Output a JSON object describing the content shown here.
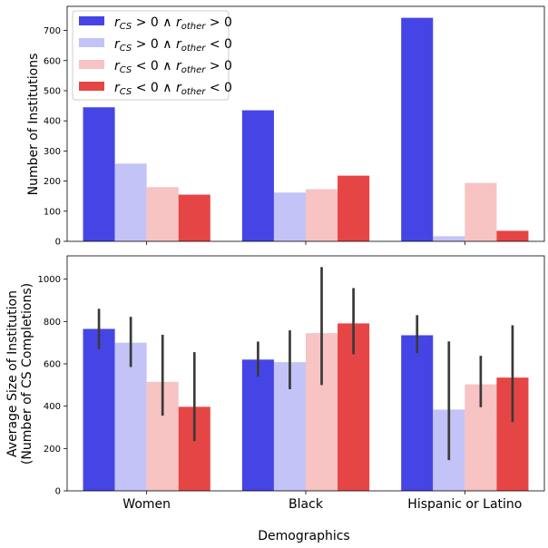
{
  "chart_data": [
    {
      "type": "bar",
      "categories": [
        "Women",
        "Black",
        "Hispanic or Latino"
      ],
      "ylabel": "Number of Institutions",
      "xlabel": "",
      "ylim": [
        0,
        780
      ],
      "yticks": [
        0,
        100,
        200,
        300,
        400,
        500,
        600,
        700
      ],
      "show_category_labels": false,
      "legend": "top-left",
      "series": [
        {
          "name": "r_CS > 0 ∧ r_other > 0",
          "color": "#4545e6",
          "values": [
            445,
            435,
            742
          ]
        },
        {
          "name": "r_CS > 0 ∧ r_other < 0",
          "color": "#c3c3f7",
          "values": [
            258,
            162,
            17
          ]
        },
        {
          "name": "r_CS < 0 ∧ r_other > 0",
          "color": "#f7c3c3",
          "values": [
            180,
            173,
            194
          ]
        },
        {
          "name": "r_CS < 0 ∧ r_other < 0",
          "color": "#e64545",
          "values": [
            155,
            218,
            35
          ]
        }
      ]
    },
    {
      "type": "bar",
      "categories": [
        "Women",
        "Black",
        "Hispanic or Latino"
      ],
      "ylabel": [
        "Average Size of Institution",
        "(Number of CS Completions)"
      ],
      "xlabel": "Demographics",
      "ylim": [
        0,
        1110
      ],
      "yticks": [
        0,
        200,
        400,
        600,
        800,
        1000
      ],
      "show_category_labels": true,
      "series": [
        {
          "name": "r_CS > 0 ∧ r_other > 0",
          "color": "#4545e6",
          "values": [
            765,
            620,
            735
          ],
          "err_low": [
            670,
            540,
            650
          ],
          "err_high": [
            860,
            705,
            830
          ]
        },
        {
          "name": "r_CS > 0 ∧ r_other < 0",
          "color": "#c3c3f7",
          "values": [
            700,
            608,
            384
          ],
          "err_low": [
            585,
            480,
            145
          ],
          "err_high": [
            822,
            758,
            706
          ]
        },
        {
          "name": "r_CS < 0 ∧ r_other > 0",
          "color": "#f7c3c3",
          "values": [
            515,
            745,
            503
          ],
          "err_low": [
            355,
            500,
            395
          ],
          "err_high": [
            737,
            1057,
            638
          ]
        },
        {
          "name": "r_CS < 0 ∧ r_other < 0",
          "color": "#e64545",
          "values": [
            397,
            791,
            535
          ],
          "err_low": [
            235,
            645,
            325
          ],
          "err_high": [
            655,
            958,
            782
          ]
        }
      ]
    }
  ]
}
